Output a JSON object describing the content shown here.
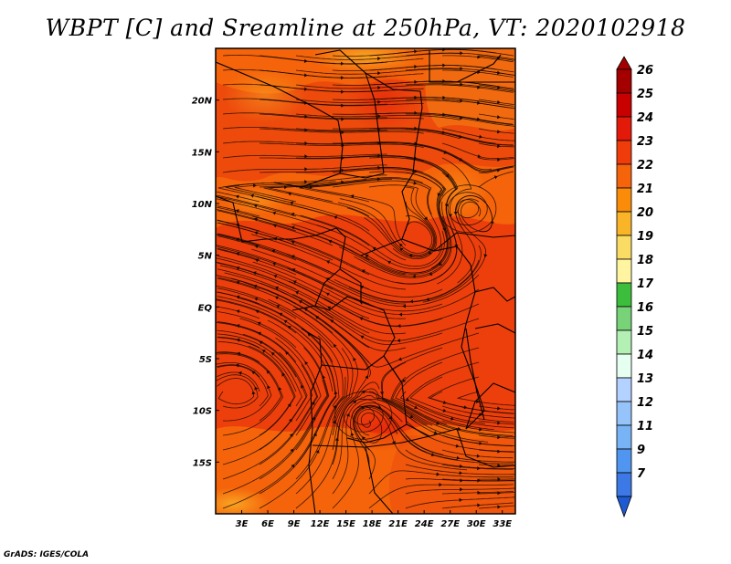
{
  "title": "WBPT [C] and Sreamline at 250hPa, VT: 2020102918",
  "credit": "GrADS: IGES/COLA",
  "map": {
    "lon_range": [
      0,
      34.5
    ],
    "lat_range": [
      -20,
      25
    ],
    "lon_ticks": [
      {
        "value": 3,
        "label": "3E"
      },
      {
        "value": 6,
        "label": "6E"
      },
      {
        "value": 9,
        "label": "9E"
      },
      {
        "value": 12,
        "label": "12E"
      },
      {
        "value": 15,
        "label": "15E"
      },
      {
        "value": 18,
        "label": "18E"
      },
      {
        "value": 21,
        "label": "21E"
      },
      {
        "value": 24,
        "label": "24E"
      },
      {
        "value": 27,
        "label": "27E"
      },
      {
        "value": 30,
        "label": "30E"
      },
      {
        "value": 33,
        "label": "33E"
      }
    ],
    "lat_ticks": [
      {
        "value": 20,
        "label": "20N"
      },
      {
        "value": 15,
        "label": "15N"
      },
      {
        "value": 10,
        "label": "10N"
      },
      {
        "value": 5,
        "label": "5N"
      },
      {
        "value": 0,
        "label": "EQ"
      },
      {
        "value": -5,
        "label": "5S"
      },
      {
        "value": -10,
        "label": "10S"
      },
      {
        "value": -15,
        "label": "15S"
      }
    ],
    "vortex_centers": [
      {
        "lon": 17.0,
        "lat": -10.5,
        "sense": "cyclonic"
      },
      {
        "lon": 29.0,
        "lat": 9.5,
        "sense": "anticyclonic"
      },
      {
        "lon": 24.0,
        "lat": 6.5,
        "sense": "cyclonic"
      },
      {
        "lon": 3.0,
        "lat": -8.0,
        "sense": "anticyclonic"
      }
    ]
  },
  "colorbar": {
    "levels": [
      {
        "label": "26",
        "color": "#a50000"
      },
      {
        "label": "25",
        "color": "#c80000"
      },
      {
        "label": "24",
        "color": "#e31a0a"
      },
      {
        "label": "23",
        "color": "#f03c0a"
      },
      {
        "label": "22",
        "color": "#f5640a"
      },
      {
        "label": "21",
        "color": "#fa8c0a"
      },
      {
        "label": "20",
        "color": "#fab428"
      },
      {
        "label": "19",
        "color": "#fadc64"
      },
      {
        "label": "18",
        "color": "#fff5a0"
      },
      {
        "label": "17",
        "color": "#3cbe3c"
      },
      {
        "label": "16",
        "color": "#78d278"
      },
      {
        "label": "15",
        "color": "#b4f0b4"
      },
      {
        "label": "14",
        "color": "#e6fff0"
      },
      {
        "label": "13",
        "color": "#b4d2ff"
      },
      {
        "label": "12",
        "color": "#96c3fa"
      },
      {
        "label": "11",
        "color": "#78b4f5"
      },
      {
        "label": "9",
        "color": "#5096f0"
      },
      {
        "label": "7",
        "color": "#3c78e6"
      }
    ],
    "bottom_color": "#1e5ad2",
    "top_color": "#a50000"
  }
}
